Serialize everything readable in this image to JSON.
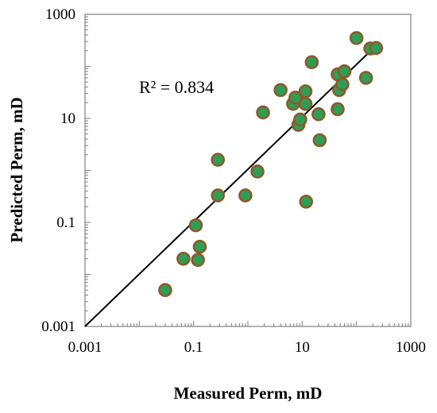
{
  "chart_data": {
    "type": "scatter",
    "xlabel": "Measured Perm, mD",
    "ylabel": "Predicted  Perm, mD",
    "x_scale": "log",
    "y_scale": "log",
    "xlim": [
      0.001,
      1000
    ],
    "ylim": [
      0.001,
      1000
    ],
    "x_ticks": [
      0.001,
      0.1,
      10,
      1000
    ],
    "x_tick_labels": [
      "0.001",
      "0.1",
      "10",
      "1000"
    ],
    "y_ticks": [
      0.001,
      0.1,
      10,
      1000
    ],
    "y_tick_labels": [
      "0.001",
      "0.1",
      "10",
      "1000"
    ],
    "grid": false,
    "annotation": "R² = 0.834",
    "marker_fill": "#2e9e55",
    "marker_edge": "#8b5a2b",
    "line_color": "#000000",
    "points": [
      {
        "x": 0.03,
        "y": 0.005
      },
      {
        "x": 0.065,
        "y": 0.02
      },
      {
        "x": 0.12,
        "y": 0.019
      },
      {
        "x": 0.13,
        "y": 0.034
      },
      {
        "x": 0.11,
        "y": 0.088
      },
      {
        "x": 0.28,
        "y": 0.33
      },
      {
        "x": 0.28,
        "y": 1.6
      },
      {
        "x": 0.9,
        "y": 0.33
      },
      {
        "x": 1.5,
        "y": 0.95
      },
      {
        "x": 1.9,
        "y": 13
      },
      {
        "x": 4.0,
        "y": 35
      },
      {
        "x": 6.8,
        "y": 19
      },
      {
        "x": 7.5,
        "y": 25
      },
      {
        "x": 8.5,
        "y": 7.5
      },
      {
        "x": 9.2,
        "y": 9.5
      },
      {
        "x": 11.5,
        "y": 19
      },
      {
        "x": 11.5,
        "y": 33
      },
      {
        "x": 11.8,
        "y": 0.25
      },
      {
        "x": 15,
        "y": 120
      },
      {
        "x": 20,
        "y": 12
      },
      {
        "x": 21,
        "y": 3.8
      },
      {
        "x": 45,
        "y": 15
      },
      {
        "x": 45,
        "y": 70
      },
      {
        "x": 48,
        "y": 35
      },
      {
        "x": 55,
        "y": 45
      },
      {
        "x": 60,
        "y": 80
      },
      {
        "x": 100,
        "y": 350
      },
      {
        "x": 150,
        "y": 60
      },
      {
        "x": 180,
        "y": 220
      },
      {
        "x": 230,
        "y": 225
      }
    ],
    "trendline": {
      "x": [
        0.001,
        220
      ],
      "y": [
        0.001,
        240
      ]
    }
  }
}
